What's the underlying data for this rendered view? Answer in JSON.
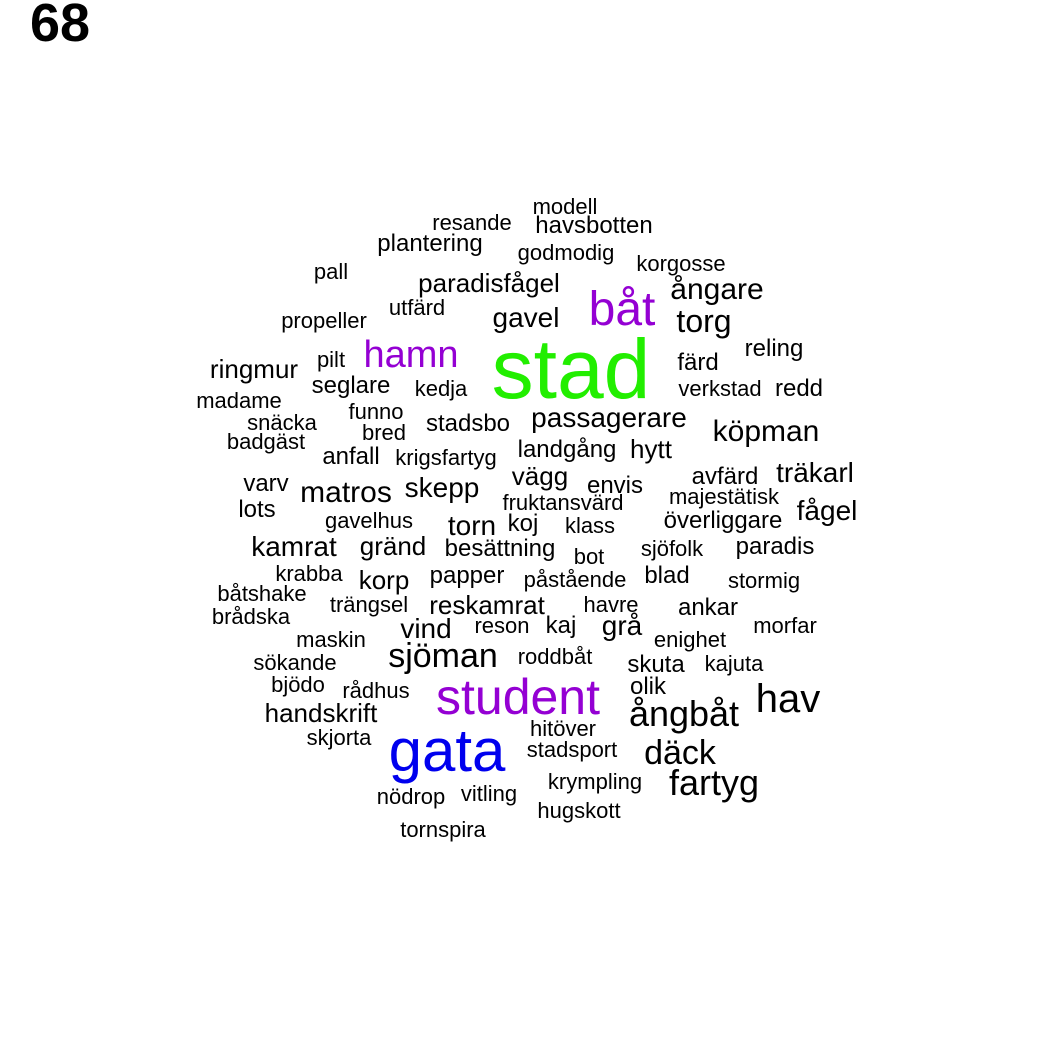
{
  "page_number": "68",
  "colors": {
    "big_green": "#22ee00",
    "big_blue": "#0000ee",
    "purple": "#9400d3",
    "text": "#000000"
  },
  "words": [
    {
      "text": "modell",
      "color": "#000000"
    },
    {
      "text": "resande",
      "color": "#000000"
    },
    {
      "text": "havsbotten",
      "color": "#000000"
    },
    {
      "text": "plantering",
      "color": "#000000"
    },
    {
      "text": "godmodig",
      "color": "#000000"
    },
    {
      "text": "pall",
      "color": "#000000"
    },
    {
      "text": "korgosse",
      "color": "#000000"
    },
    {
      "text": "paradisfågel",
      "color": "#000000"
    },
    {
      "text": "ångare",
      "color": "#000000"
    },
    {
      "text": "båt",
      "color": "#9400d3"
    },
    {
      "text": "utfärd",
      "color": "#000000"
    },
    {
      "text": "propeller",
      "color": "#000000"
    },
    {
      "text": "gavel",
      "color": "#000000"
    },
    {
      "text": "torg",
      "color": "#000000"
    },
    {
      "text": "reling",
      "color": "#000000"
    },
    {
      "text": "hamn",
      "color": "#9400d3"
    },
    {
      "text": "stad",
      "color": "#22ee00"
    },
    {
      "text": "pilt",
      "color": "#000000"
    },
    {
      "text": "färd",
      "color": "#000000"
    },
    {
      "text": "ringmur",
      "color": "#000000"
    },
    {
      "text": "seglare",
      "color": "#000000"
    },
    {
      "text": "kedja",
      "color": "#000000"
    },
    {
      "text": "verkstad",
      "color": "#000000"
    },
    {
      "text": "redd",
      "color": "#000000"
    },
    {
      "text": "madame",
      "color": "#000000"
    },
    {
      "text": "funno",
      "color": "#000000"
    },
    {
      "text": "passagerare",
      "color": "#000000"
    },
    {
      "text": "snäcka",
      "color": "#000000"
    },
    {
      "text": "stadsbo",
      "color": "#000000"
    },
    {
      "text": "köpman",
      "color": "#000000"
    },
    {
      "text": "bred",
      "color": "#000000"
    },
    {
      "text": "badgäst",
      "color": "#000000"
    },
    {
      "text": "landgång",
      "color": "#000000"
    },
    {
      "text": "hytt",
      "color": "#000000"
    },
    {
      "text": "anfall",
      "color": "#000000"
    },
    {
      "text": "krigsfartyg",
      "color": "#000000"
    },
    {
      "text": "vägg",
      "color": "#000000"
    },
    {
      "text": "avfärd",
      "color": "#000000"
    },
    {
      "text": "träkarl",
      "color": "#000000"
    },
    {
      "text": "varv",
      "color": "#000000"
    },
    {
      "text": "envis",
      "color": "#000000"
    },
    {
      "text": "matros",
      "color": "#000000"
    },
    {
      "text": "skepp",
      "color": "#000000"
    },
    {
      "text": "majestätisk",
      "color": "#000000"
    },
    {
      "text": "fruktansvärd",
      "color": "#000000"
    },
    {
      "text": "lots",
      "color": "#000000"
    },
    {
      "text": "fågel",
      "color": "#000000"
    },
    {
      "text": "gavelhus",
      "color": "#000000"
    },
    {
      "text": "torn",
      "color": "#000000"
    },
    {
      "text": "koj",
      "color": "#000000"
    },
    {
      "text": "klass",
      "color": "#000000"
    },
    {
      "text": "överliggare",
      "color": "#000000"
    },
    {
      "text": "kamrat",
      "color": "#000000"
    },
    {
      "text": "gränd",
      "color": "#000000"
    },
    {
      "text": "besättning",
      "color": "#000000"
    },
    {
      "text": "sjöfolk",
      "color": "#000000"
    },
    {
      "text": "paradis",
      "color": "#000000"
    },
    {
      "text": "bot",
      "color": "#000000"
    },
    {
      "text": "krabba",
      "color": "#000000"
    },
    {
      "text": "papper",
      "color": "#000000"
    },
    {
      "text": "blad",
      "color": "#000000"
    },
    {
      "text": "korp",
      "color": "#000000"
    },
    {
      "text": "påstående",
      "color": "#000000"
    },
    {
      "text": "stormig",
      "color": "#000000"
    },
    {
      "text": "båtshake",
      "color": "#000000"
    },
    {
      "text": "trängsel",
      "color": "#000000"
    },
    {
      "text": "reskamrat",
      "color": "#000000"
    },
    {
      "text": "havre",
      "color": "#000000"
    },
    {
      "text": "ankar",
      "color": "#000000"
    },
    {
      "text": "brådska",
      "color": "#000000"
    },
    {
      "text": "reson",
      "color": "#000000"
    },
    {
      "text": "kaj",
      "color": "#000000"
    },
    {
      "text": "grå",
      "color": "#000000"
    },
    {
      "text": "morfar",
      "color": "#000000"
    },
    {
      "text": "vind",
      "color": "#000000"
    },
    {
      "text": "maskin",
      "color": "#000000"
    },
    {
      "text": "enighet",
      "color": "#000000"
    },
    {
      "text": "sjöman",
      "color": "#000000"
    },
    {
      "text": "roddbåt",
      "color": "#000000"
    },
    {
      "text": "sökande",
      "color": "#000000"
    },
    {
      "text": "skuta",
      "color": "#000000"
    },
    {
      "text": "kajuta",
      "color": "#000000"
    },
    {
      "text": "bjödo",
      "color": "#000000"
    },
    {
      "text": "olik",
      "color": "#000000"
    },
    {
      "text": "rådhus",
      "color": "#000000"
    },
    {
      "text": "student",
      "color": "#9400d3"
    },
    {
      "text": "hav",
      "color": "#000000"
    },
    {
      "text": "handskrift",
      "color": "#000000"
    },
    {
      "text": "ångbåt",
      "color": "#000000"
    },
    {
      "text": "hitöver",
      "color": "#000000"
    },
    {
      "text": "skjorta",
      "color": "#000000"
    },
    {
      "text": "gata",
      "color": "#0000ee"
    },
    {
      "text": "stadsport",
      "color": "#000000"
    },
    {
      "text": "däck",
      "color": "#000000"
    },
    {
      "text": "fartyg",
      "color": "#000000"
    },
    {
      "text": "krympling",
      "color": "#000000"
    },
    {
      "text": "nödrop",
      "color": "#000000"
    },
    {
      "text": "vitling",
      "color": "#000000"
    },
    {
      "text": "hugskott",
      "color": "#000000"
    },
    {
      "text": "tornspira",
      "color": "#000000"
    }
  ]
}
